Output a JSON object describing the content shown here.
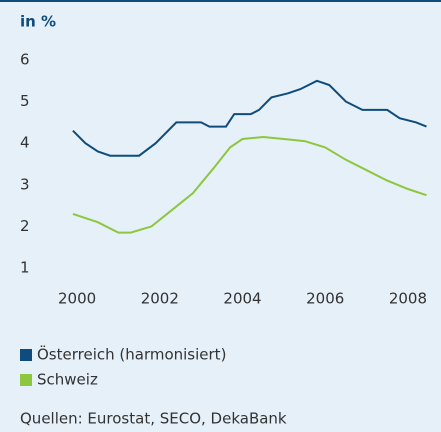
{
  "chart_data": {
    "type": "line",
    "unit_label": "in %",
    "xlim": [
      1999.2,
      2008.8
    ],
    "xticks": [
      2000,
      2002,
      2004,
      2006,
      2008
    ],
    "ylim": [
      1,
      6
    ],
    "yticks": [
      1,
      2,
      3,
      4,
      5,
      6
    ],
    "series": [
      {
        "name": "Österreich (harmonisiert)",
        "color": "#0f4c7d",
        "x": [
          1999.9,
          2000.2,
          2000.5,
          2000.8,
          2001.2,
          2001.5,
          2001.9,
          2002.4,
          2003.0,
          2003.2,
          2003.6,
          2003.8,
          2004.2,
          2004.4,
          2004.7,
          2005.1,
          2005.4,
          2005.8,
          2006.1,
          2006.5,
          2006.9,
          2007.5,
          2007.8,
          2008.2,
          2008.45
        ],
        "values": [
          4.3,
          4.0,
          3.8,
          3.7,
          3.7,
          3.7,
          4.0,
          4.5,
          4.5,
          4.4,
          4.4,
          4.7,
          4.7,
          4.8,
          5.1,
          5.2,
          5.3,
          5.5,
          5.4,
          5.0,
          4.8,
          4.8,
          4.6,
          4.5,
          4.4
        ]
      },
      {
        "name": "Schweiz",
        "color": "#8dc63f",
        "x": [
          1999.9,
          2000.5,
          2001.0,
          2001.3,
          2001.8,
          2002.3,
          2002.8,
          2003.3,
          2003.7,
          2004.0,
          2004.5,
          2005.0,
          2005.5,
          2006.0,
          2006.5,
          2007.0,
          2007.5,
          2008.0,
          2008.45
        ],
        "values": [
          2.3,
          2.1,
          1.85,
          1.85,
          2.0,
          2.4,
          2.8,
          3.4,
          3.9,
          4.1,
          4.15,
          4.1,
          4.05,
          3.9,
          3.6,
          3.35,
          3.1,
          2.9,
          2.75
        ]
      }
    ],
    "source": "Quellen: Eurostat, SECO, DekaBank"
  }
}
